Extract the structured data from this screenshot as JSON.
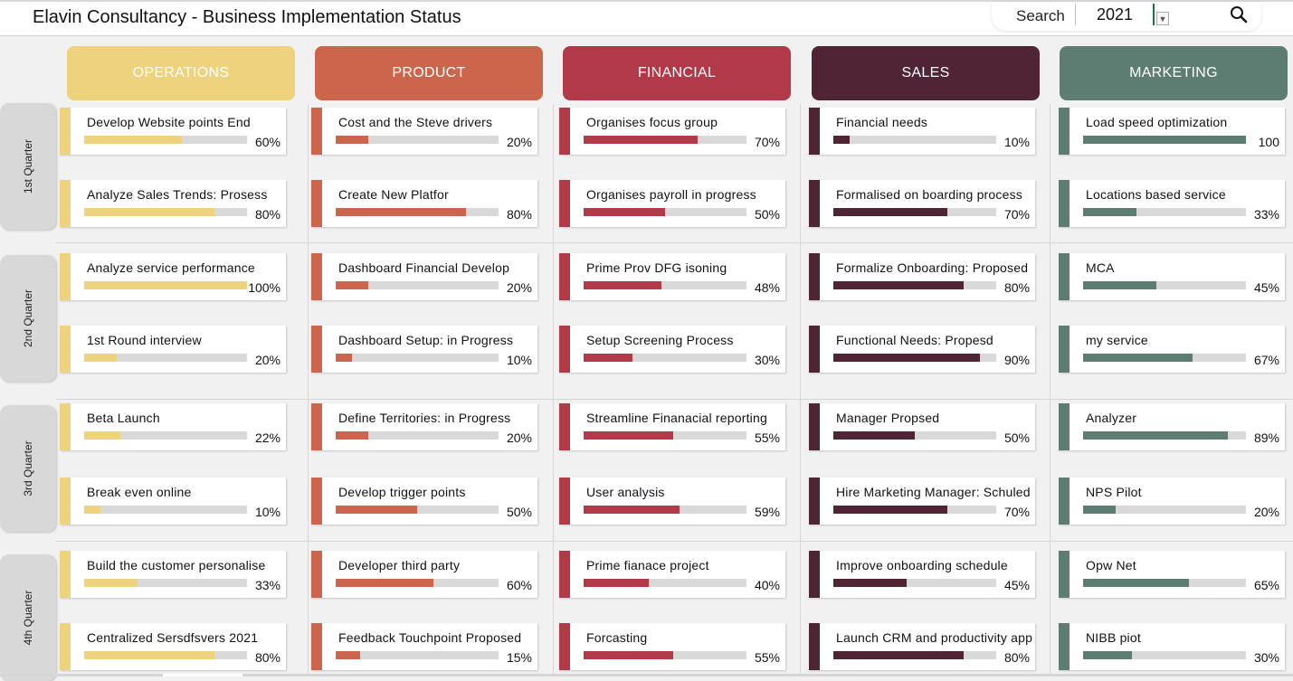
{
  "title": "Elavin Consultancy - Business Implementation Status",
  "search": {
    "label": "Search",
    "value": "2021",
    "dropdown_icon": "chevron-down-icon",
    "search_icon": "magnifier-icon"
  },
  "quarters": [
    "1st Quarter",
    "2nd Quarter",
    "3rd Quarter",
    "4th Quarter"
  ],
  "departments": [
    {
      "name": "OPERATIONS",
      "header_color": "#EED27D",
      "header_text_color": "#FFFFFF",
      "bar_color": "#EED27D",
      "tasks": [
        {
          "label": "Develop Website points End",
          "progress": 60,
          "pct": "60%"
        },
        {
          "label": "Analyze Sales Trends: Prosess",
          "progress": 80,
          "pct": "80%"
        },
        {
          "label": "Analyze service performance",
          "progress": 100,
          "pct": "100%"
        },
        {
          "label": "1st Round interview",
          "progress": 20,
          "pct": "20%"
        },
        {
          "label": "Beta Launch",
          "progress": 22,
          "pct": "22%"
        },
        {
          "label": "Break even online",
          "progress": 10,
          "pct": "10%"
        },
        {
          "label": "Build the customer personalise",
          "progress": 33,
          "pct": "33%"
        },
        {
          "label": "Centralized Sersdfsvers 2021",
          "progress": 80,
          "pct": "80%"
        }
      ]
    },
    {
      "name": "PRODUCT",
      "header_color": "#CB654C",
      "header_text_color": "#FFFFFF",
      "bar_color": "#CB654C",
      "tasks": [
        {
          "label": "Cost and the Steve drivers",
          "progress": 20,
          "pct": "20%"
        },
        {
          "label": "Create New Platfor",
          "progress": 80,
          "pct": "80%"
        },
        {
          "label": "Dashboard Financial Develop",
          "progress": 20,
          "pct": "20%"
        },
        {
          "label": "Dashboard Setup: in Progress",
          "progress": 10,
          "pct": "10%"
        },
        {
          "label": "Define Territories: in Progress",
          "progress": 20,
          "pct": "20%"
        },
        {
          "label": "Develop trigger points",
          "progress": 50,
          "pct": "50%"
        },
        {
          "label": "Developer third party",
          "progress": 60,
          "pct": "60%"
        },
        {
          "label": "Feedback Touchpoint Proposed",
          "progress": 15,
          "pct": "15%"
        }
      ]
    },
    {
      "name": "FINANCIAL",
      "header_color": "#B23A48",
      "header_text_color": "#FFFFFF",
      "bar_color": "#B23A48",
      "tasks": [
        {
          "label": "Organises focus group",
          "progress": 70,
          "pct": "70%"
        },
        {
          "label": "Organises payroll in progress",
          "progress": 50,
          "pct": "50%"
        },
        {
          "label": "Prime Prov DFG isoning",
          "progress": 48,
          "pct": "48%"
        },
        {
          "label": "Setup Screening Process",
          "progress": 30,
          "pct": "30%"
        },
        {
          "label": "Streamline Finanacial reporting",
          "progress": 55,
          "pct": "55%"
        },
        {
          "label": "User analysis",
          "progress": 59,
          "pct": "59%"
        },
        {
          "label": "Prime fianace project",
          "progress": 40,
          "pct": "40%"
        },
        {
          "label": "Forcasting",
          "progress": 55,
          "pct": "55%"
        }
      ]
    },
    {
      "name": "SALES",
      "header_color": "#4F2535",
      "header_text_color": "#FFFFFF",
      "bar_color": "#4F2535",
      "tasks": [
        {
          "label": "Financial needs",
          "progress": 10,
          "pct": "10%"
        },
        {
          "label": "Formalised on boarding process",
          "progress": 70,
          "pct": "70%"
        },
        {
          "label": "Formalize Onboarding: Proposed",
          "progress": 80,
          "pct": "80%"
        },
        {
          "label": "Functional Needs: Propesd",
          "progress": 90,
          "pct": "90%"
        },
        {
          "label": "Manager Propsed",
          "progress": 50,
          "pct": "50%"
        },
        {
          "label": "Hire Marketing Manager: Schuled",
          "progress": 70,
          "pct": "70%"
        },
        {
          "label": "Improve onboarding schedule",
          "progress": 45,
          "pct": "45%"
        },
        {
          "label": "Launch CRM and productivity app",
          "progress": 80,
          "pct": "80%"
        }
      ]
    },
    {
      "name": "MARKETING",
      "header_color": "#5E7D72",
      "header_text_color": "#FFFFFF",
      "bar_color": "#5E7D72",
      "tasks": [
        {
          "label": "Load speed optimization",
          "progress": 100,
          "pct": "100"
        },
        {
          "label": "Locations  based service",
          "progress": 33,
          "pct": "33%"
        },
        {
          "label": "MCA",
          "progress": 45,
          "pct": "45%"
        },
        {
          "label": "my service",
          "progress": 67,
          "pct": "67%"
        },
        {
          "label": "Analyzer",
          "progress": 89,
          "pct": "89%"
        },
        {
          "label": "NPS Pilot",
          "progress": 20,
          "pct": "20%"
        },
        {
          "label": "Opw Net",
          "progress": 65,
          "pct": "65%"
        },
        {
          "label": "NIBB piot",
          "progress": 30,
          "pct": "30%"
        }
      ]
    }
  ]
}
